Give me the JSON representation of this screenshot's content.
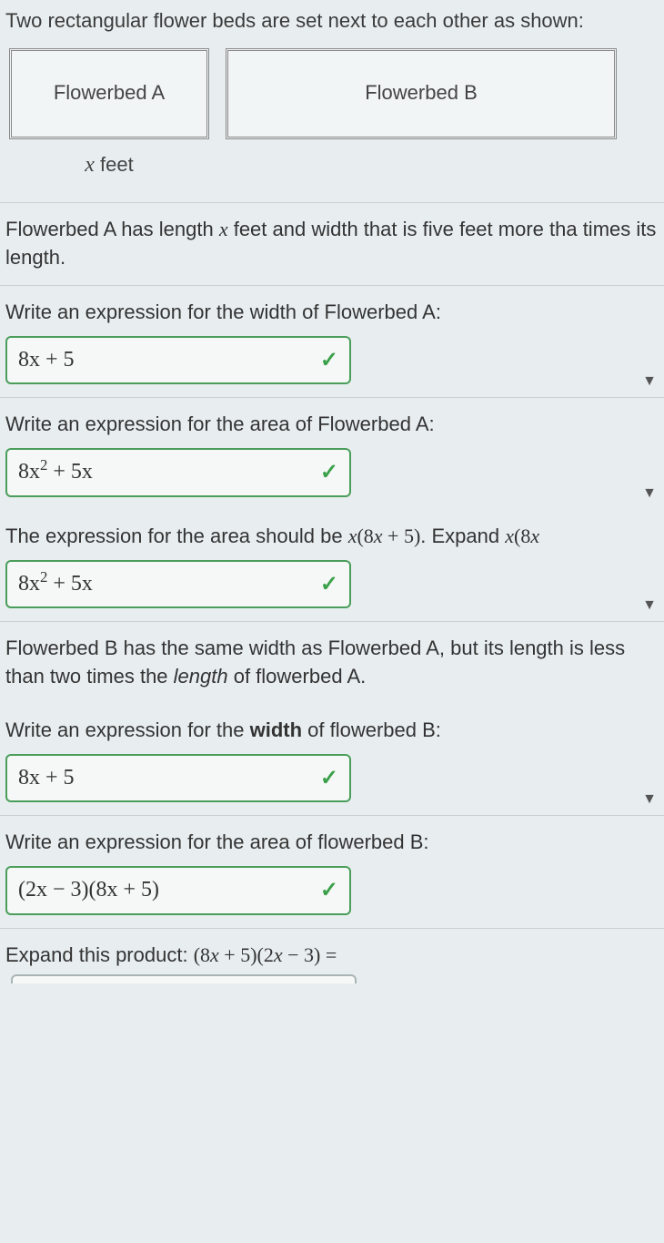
{
  "intro": "Two rectangular flower beds are set next to each other as shown:",
  "diagram": {
    "bedA_label": "Flowerbed A",
    "bedB_label": "Flowerbed B",
    "x_feet_html": "<span class='xvar'>x</span> feet"
  },
  "colors": {
    "background": "#e8eef0",
    "box_border_correct": "#4a9d5a",
    "check_color": "#3aa04a",
    "text": "#333"
  },
  "questions": [
    {
      "prompt_html": "Flowerbed A has length <span class='mathit'>x</span> feet and width that is five feet more tha times its length.",
      "has_box": false,
      "has_caret": false
    },
    {
      "prompt_html": "Write an expression for the width of Flowerbed A:",
      "answer_html": "8x + 5",
      "correct": true,
      "has_box": true,
      "has_caret": true
    },
    {
      "prompt_html": "Write an expression for the area of Flowerbed A:",
      "answer_html": "8x<sup>2</sup> + 5x",
      "correct": true,
      "has_box": true,
      "has_caret": true
    },
    {
      "prompt_html": "The expression for the area should be <span class='mathit'>x</span><span class='mathrm'>(8<span class='mathit'>x</span> + 5)</span>. Expand <span class='mathit'>x</span><span class='mathrm'>(8<span class='mathit'>x</span></span>",
      "answer_html": "8x<sup>2</sup> + 5x",
      "correct": true,
      "has_box": true,
      "has_caret": true,
      "no_border": true
    },
    {
      "prompt_html": "Flowerbed B has the same width as Flowerbed A, but its length is less than two times the <span class='italic-word'>length</span> of flowerbed A.",
      "has_box": false,
      "has_caret": false
    },
    {
      "prompt_html": "Write an expression for the <span class='bold-word'>width</span> of flowerbed B:",
      "answer_html": "8x + 5",
      "correct": true,
      "has_box": true,
      "has_caret": true,
      "no_border": true
    },
    {
      "prompt_html": "Write an expression for the area of flowerbed B:",
      "answer_html": "(2x − 3)(8x + 5)",
      "correct": true,
      "has_box": true,
      "has_caret": false
    },
    {
      "prompt_html": "Expand this product: <span class='mathrm'>(8<span class='mathit'>x</span> + 5)(2<span class='mathit'>x</span> − 3) =</span>",
      "has_box": false,
      "has_caret": false,
      "empty_input": true
    }
  ]
}
